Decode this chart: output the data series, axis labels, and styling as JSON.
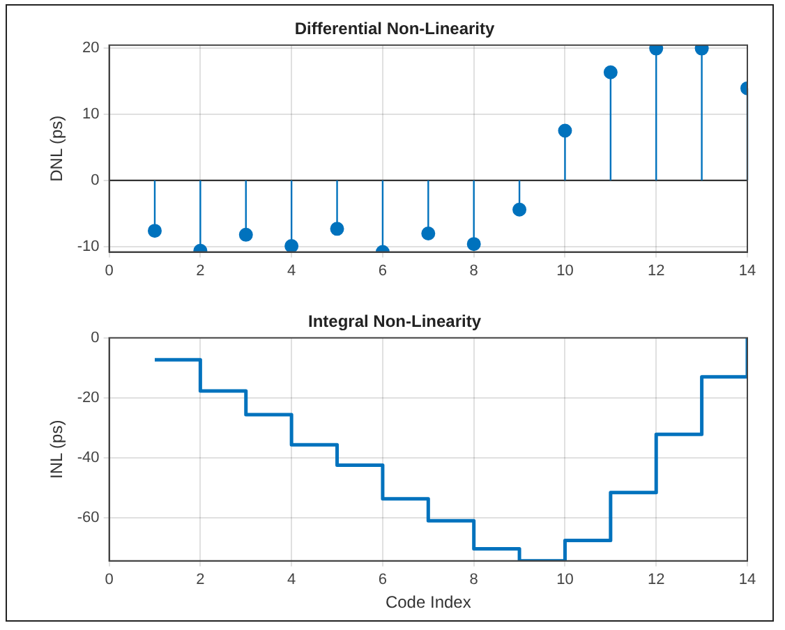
{
  "chart_data": [
    {
      "type": "lollipop",
      "title": "Differential Non-Linearity",
      "ylabel": "DNL (ps)",
      "x": [
        1,
        2,
        3,
        4,
        5,
        6,
        7,
        8,
        9,
        10,
        11,
        12,
        13,
        14
      ],
      "values": [
        -7.6,
        -10.6,
        -8.2,
        -9.9,
        -7.3,
        -10.8,
        -8.0,
        -9.6,
        -4.4,
        7.5,
        16.3,
        19.9,
        19.9,
        13.9
      ],
      "color": "#0072bd",
      "xlim": [
        0,
        14
      ],
      "xticks": [
        0,
        2,
        4,
        6,
        8,
        10,
        12,
        14
      ],
      "ylim": [
        -10.8,
        20.4
      ],
      "yticks": [
        -10,
        0,
        10,
        20
      ],
      "grid": true,
      "marker": "circle"
    },
    {
      "type": "step",
      "title": "Integral Non-Linearity",
      "xlabel": "Code Index",
      "ylabel": "INL (ps)",
      "x": [
        1,
        2,
        3,
        4,
        5,
        6,
        7,
        8,
        9,
        10,
        11,
        12,
        13,
        14
      ],
      "values": [
        -7.3,
        -17.7,
        -25.6,
        -35.7,
        -42.5,
        -53.7,
        -61,
        -70.4,
        -74.4,
        -67.6,
        -51.6,
        -32.2,
        -13,
        0
      ],
      "color": "#0072bd",
      "xlim": [
        0,
        14
      ],
      "xticks": [
        0,
        2,
        4,
        6,
        8,
        10,
        12,
        14
      ],
      "ylim": [
        -74.4,
        0
      ],
      "yticks": [
        -60,
        -40,
        -20,
        0
      ],
      "grid": true
    }
  ]
}
